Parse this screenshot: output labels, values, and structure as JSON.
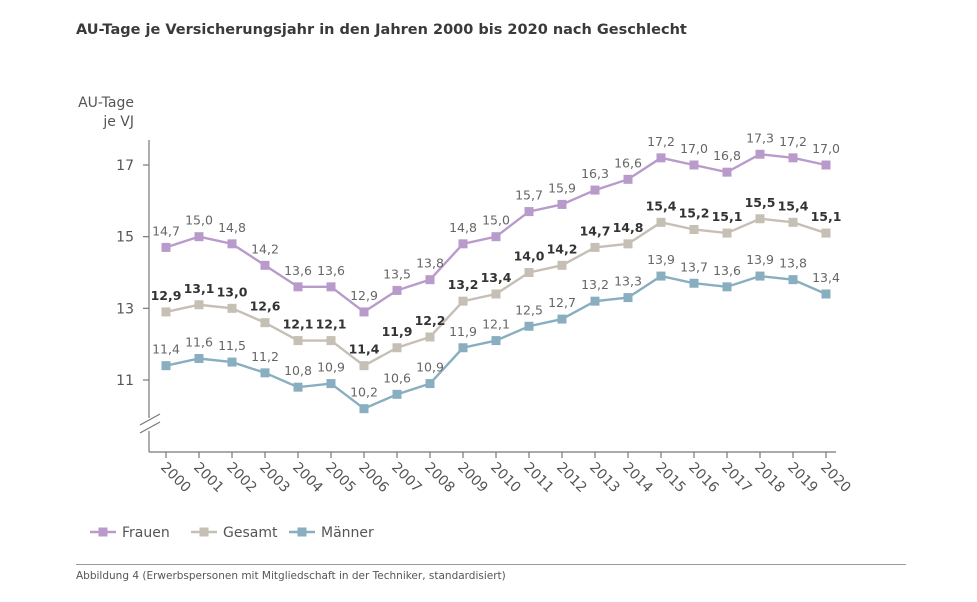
{
  "title": "AU-Tage je Versicherungsjahr in den Jahren 2000 bis 2020 nach Geschlecht",
  "caption": "Abbildung 4 (Erwerbspersonen mit Mitgliedschaft in der Techniker, standardisiert)",
  "chart_data": {
    "type": "line",
    "ylabel_line1": "AU-Tage",
    "ylabel_line2": "je VJ",
    "yticks": [
      11,
      13,
      15,
      17
    ],
    "ylim": [
      9.5,
      17.6
    ],
    "axis_break": true,
    "grid": false,
    "legend_position": "bottom-left",
    "x": [
      "2000",
      "2001",
      "2002",
      "2003",
      "2004",
      "2005",
      "2006",
      "2007",
      "2008",
      "2009",
      "2010",
      "2011",
      "2012",
      "2013",
      "2014",
      "2015",
      "2016",
      "2017",
      "2018",
      "2019",
      "2020"
    ],
    "series": [
      {
        "name": "Frauen",
        "color": "#b99bcb",
        "label_bold": false,
        "values": [
          14.7,
          15.0,
          14.8,
          14.2,
          13.6,
          13.6,
          12.9,
          13.5,
          13.8,
          14.8,
          15.0,
          15.7,
          15.9,
          16.3,
          16.6,
          17.2,
          17.0,
          16.8,
          17.3,
          17.2,
          17.0
        ],
        "labels": [
          "14,7",
          "15,0",
          "14,8",
          "14,2",
          "13,6",
          "13,6",
          "12,9",
          "13,5",
          "13,8",
          "14,8",
          "15,0",
          "15,7",
          "15,9",
          "16,3",
          "16,6",
          "17,2",
          "17,0",
          "16,8",
          "17,3",
          "17,2",
          "17,0"
        ]
      },
      {
        "name": "Gesamt",
        "color": "#c6bfb5",
        "label_bold": true,
        "values": [
          12.9,
          13.1,
          13.0,
          12.6,
          12.1,
          12.1,
          11.4,
          11.9,
          12.2,
          13.2,
          13.4,
          14.0,
          14.2,
          14.7,
          14.8,
          15.4,
          15.2,
          15.1,
          15.5,
          15.4,
          15.1
        ],
        "labels": [
          "12,9",
          "13,1",
          "13,0",
          "12,6",
          "12,1",
          "12,1",
          "11,4",
          "11,9",
          "12,2",
          "13,2",
          "13,4",
          "14,0",
          "14,2",
          "14,7",
          "14,8",
          "15,4",
          "15,2",
          "15,1",
          "15,5",
          "15,4",
          "15,1"
        ]
      },
      {
        "name": "Männer",
        "color": "#88aebf",
        "label_bold": false,
        "values": [
          11.4,
          11.6,
          11.5,
          11.2,
          10.8,
          10.9,
          10.2,
          10.6,
          10.9,
          11.9,
          12.1,
          12.5,
          12.7,
          13.2,
          13.3,
          13.9,
          13.7,
          13.6,
          13.9,
          13.8,
          13.4
        ],
        "labels": [
          "11,4",
          "11,6",
          "11,5",
          "11,2",
          "10,8",
          "10,9",
          "10,2",
          "10,6",
          "10,9",
          "11,9",
          "12,1",
          "12,5",
          "12,7",
          "13,2",
          "13,3",
          "13,9",
          "13,7",
          "13,6",
          "13,9",
          "13,8",
          "13,4"
        ]
      }
    ]
  }
}
